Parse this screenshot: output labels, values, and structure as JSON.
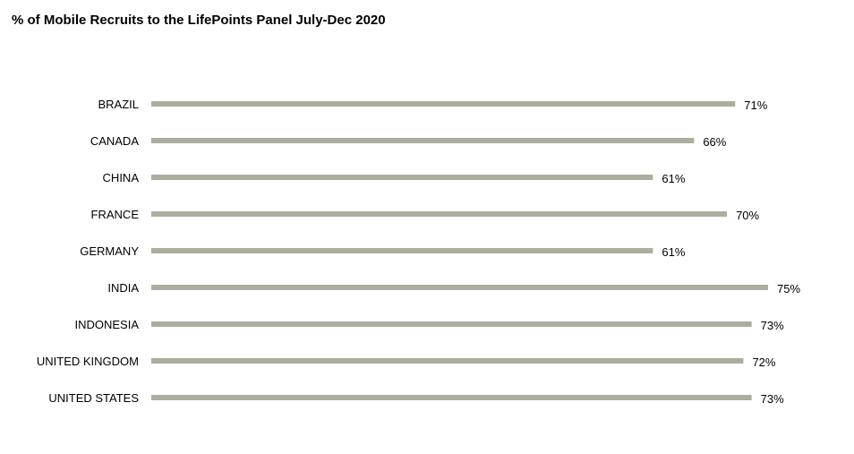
{
  "chart_data": {
    "type": "bar",
    "orientation": "horizontal",
    "title": "% of Mobile Recruits to the LifePoints Panel July-Dec 2020",
    "categories": [
      "BRAZIL",
      "CANADA",
      "CHINA",
      "FRANCE",
      "GERMANY",
      "INDIA",
      "INDONESIA",
      "UNITED KINGDOM",
      "UNITED STATES"
    ],
    "values": [
      71,
      66,
      61,
      70,
      61,
      75,
      73,
      72,
      73
    ],
    "value_labels": [
      "71%",
      "66%",
      "61%",
      "70%",
      "61%",
      "75%",
      "73%",
      "72%",
      "73%"
    ],
    "xlim": [
      0,
      75
    ],
    "grid": false,
    "bar_color": "#adad9e"
  }
}
